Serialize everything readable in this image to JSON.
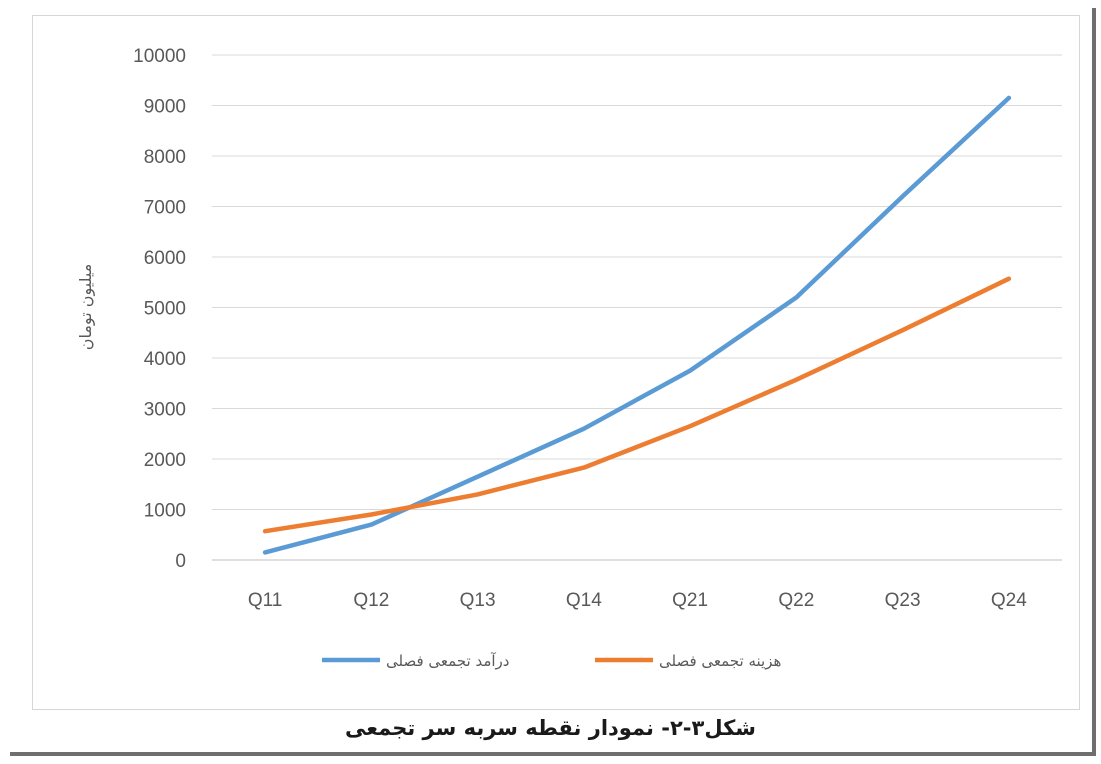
{
  "chart_data": {
    "type": "line",
    "categories": [
      "Q11",
      "Q12",
      "Q13",
      "Q14",
      "Q21",
      "Q22",
      "Q23",
      "Q24"
    ],
    "ylabel": "میلیون تومان",
    "ylim": [
      0,
      10000
    ],
    "yticks": [
      0,
      1000,
      2000,
      3000,
      4000,
      5000,
      6000,
      7000,
      8000,
      9000,
      10000
    ],
    "grid": true,
    "legend_position": "bottom",
    "series": [
      {
        "name": "درآمد تجمعی فصلی",
        "color": "#5b9bd5",
        "values": [
          150,
          700,
          1650,
          2600,
          3750,
          5200,
          7200,
          9150
        ]
      },
      {
        "name": "هزینه تجمعی فصلی",
        "color": "#ed7d31",
        "values": [
          570,
          900,
          1300,
          1830,
          2650,
          3570,
          4550,
          5570
        ]
      }
    ]
  },
  "caption": "شکل۳-۲- نمودار نقطه سربه سر تجمعی"
}
